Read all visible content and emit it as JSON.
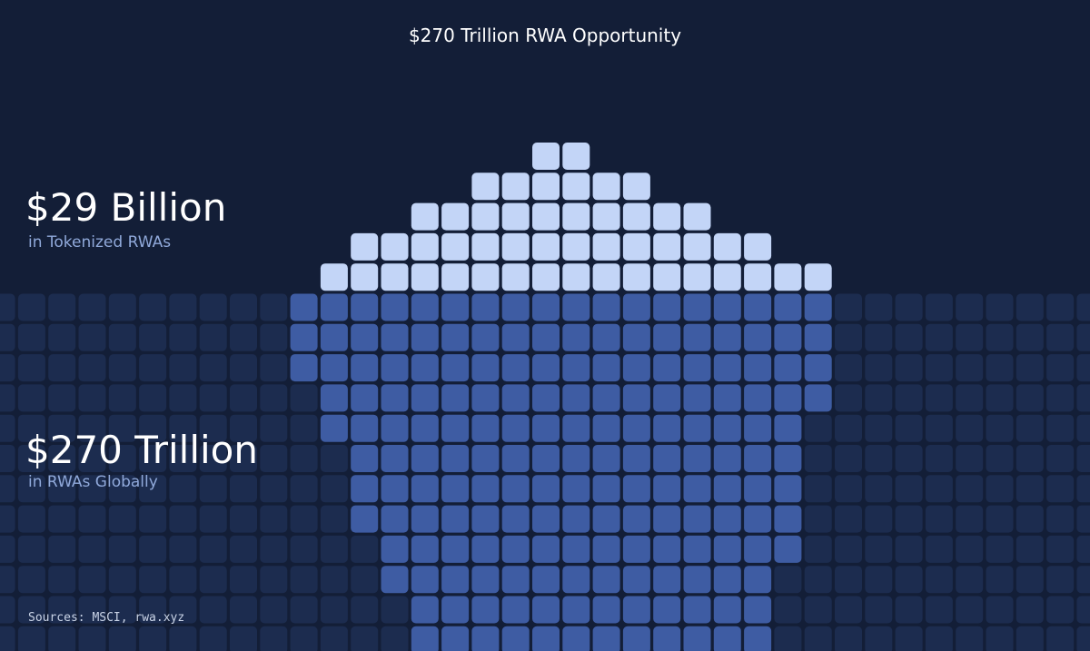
{
  "title": "$270 Trillion RWA Opportunity",
  "stats": [
    {
      "value": "$29 Billion",
      "label": "in Tokenized RWAs"
    },
    {
      "value": "$270 Trillion",
      "label": "in RWAs Globally"
    }
  ],
  "sources": "Sources: MSCI, rwa.xyz"
}
